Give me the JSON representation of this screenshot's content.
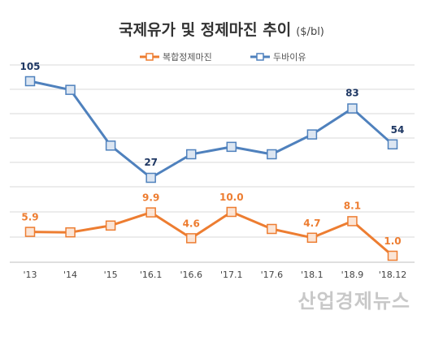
{
  "chart_data": {
    "type": "line",
    "title": "국제유가 및 정제마진 추이",
    "unit": "($/bl)",
    "categories": [
      "'13",
      "'14",
      "'15",
      "'16.1",
      "'16.6",
      "'17.1",
      "'17.6",
      "'18.1",
      "'18.9",
      "'18.12"
    ],
    "series": [
      {
        "name": "복합정제마진",
        "color": "#ED7D31",
        "values": [
          5.9,
          5.8,
          7.2,
          9.9,
          4.6,
          10.0,
          6.5,
          4.7,
          8.1,
          1.0
        ],
        "labels": [
          "5.9",
          "",
          "",
          "9.9",
          "4.6",
          "10.0",
          "",
          "4.7",
          "8.1",
          "1.0"
        ]
      },
      {
        "name": "두바이유",
        "color": "#4F81BD",
        "values": [
          105,
          98,
          53,
          27,
          46,
          52,
          46,
          62,
          83,
          54
        ],
        "labels": [
          "105",
          "",
          "",
          "27",
          "",
          "",
          "",
          "",
          "83",
          "54"
        ]
      }
    ],
    "legend_position": "top",
    "grid": true
  },
  "watermark": "산업경제뉴스"
}
